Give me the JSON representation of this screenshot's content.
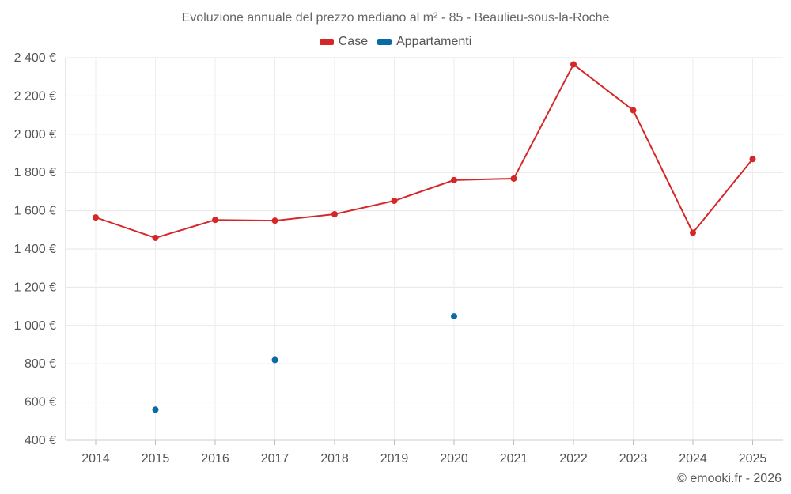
{
  "chart_data": {
    "type": "line",
    "title": "Evoluzione annuale del prezzo mediano al m² - 85 - Beaulieu-sous-la-Roche",
    "categories": [
      "2014",
      "2015",
      "2016",
      "2017",
      "2018",
      "2019",
      "2020",
      "2021",
      "2022",
      "2023",
      "2024",
      "2025"
    ],
    "series": [
      {
        "name": "Case",
        "color": "#d62728",
        "values": [
          1565,
          1458,
          1552,
          1548,
          1582,
          1652,
          1760,
          1768,
          2365,
          2125,
          1485,
          1870
        ]
      },
      {
        "name": "Appartamenti",
        "color": "#0a6aa5",
        "values": [
          null,
          560,
          null,
          820,
          null,
          null,
          1048,
          null,
          null,
          null,
          null,
          null
        ]
      }
    ],
    "ylim": [
      400,
      2400
    ],
    "yticks": [
      400,
      600,
      800,
      1000,
      1200,
      1400,
      1600,
      1800,
      2000,
      2200,
      2400
    ],
    "ytick_labels": [
      "400 €",
      "600 €",
      "800 €",
      "1 000 €",
      "1 200 €",
      "1 400 €",
      "1 600 €",
      "1 800 €",
      "2 000 €",
      "2 200 €",
      "2 400 €"
    ],
    "grid": true,
    "legend_position": "top-center"
  },
  "credit": "© emooki.fr - 2026"
}
